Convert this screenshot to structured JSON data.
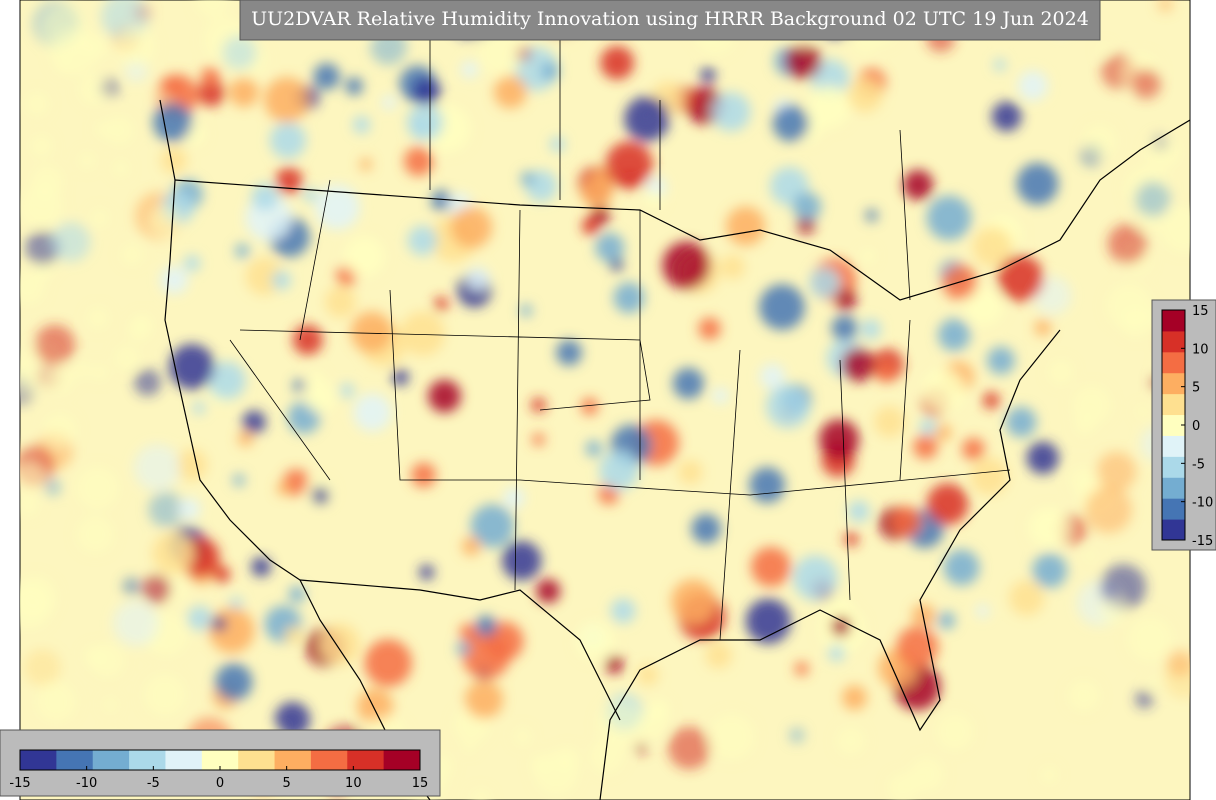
{
  "title": "UU2DVAR Relative Humidity Innovation using HRRR Background 02 UTC 19 Jun 2024",
  "colorbar": {
    "range": [
      -15,
      15
    ],
    "ticks": [
      -15,
      -10,
      -5,
      0,
      5,
      10,
      15
    ],
    "colors": [
      "#313695",
      "#4575b4",
      "#74add1",
      "#abd9e9",
      "#e0f3f8",
      "#ffffbf",
      "#fee090",
      "#fdae61",
      "#f46d43",
      "#d73027",
      "#a50026"
    ]
  }
}
